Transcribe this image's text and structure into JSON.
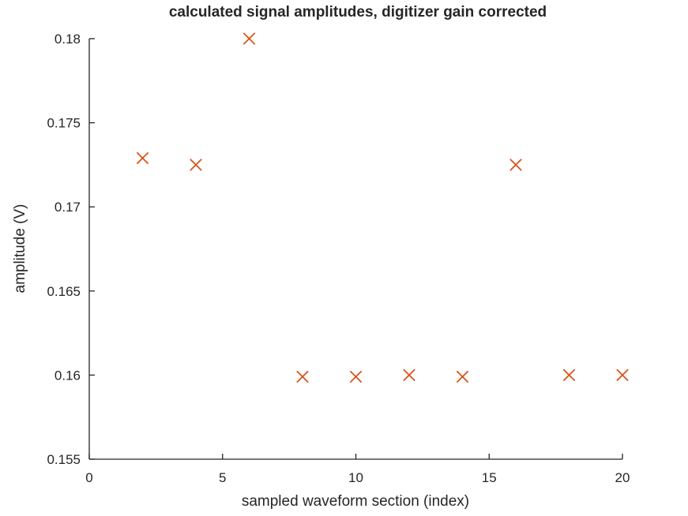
{
  "chart_data": {
    "type": "scatter",
    "title": "calculated signal amplitudes, digitizer gain corrected",
    "xlabel": "sampled waveform section (index)",
    "ylabel": "amplitude (V)",
    "xlim": [
      0,
      20
    ],
    "ylim": [
      0.155,
      0.18
    ],
    "xticks": [
      0,
      5,
      10,
      15,
      20
    ],
    "xtick_labels": [
      "0",
      "5",
      "10",
      "15",
      "20"
    ],
    "yticks": [
      0.155,
      0.16,
      0.165,
      0.17,
      0.175,
      0.18
    ],
    "ytick_labels": [
      "0.155",
      "0.16",
      "0.165",
      "0.17",
      "0.175",
      "0.18"
    ],
    "grid": false,
    "marker": "x",
    "marker_color": "#d95319",
    "series": [
      {
        "x": [
          2,
          4,
          6,
          8,
          10,
          12,
          14,
          16,
          18,
          20
        ],
        "y": [
          0.1729,
          0.1725,
          0.18,
          0.1599,
          0.1599,
          0.16,
          0.1599,
          0.1725,
          0.16,
          0.16
        ]
      }
    ]
  }
}
